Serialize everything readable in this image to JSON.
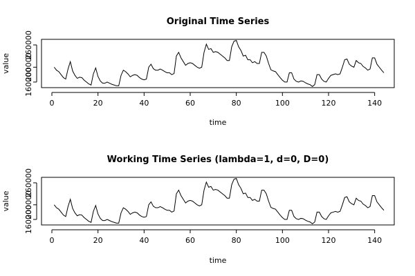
{
  "chart_data": [
    {
      "type": "line",
      "title": "Original Time Series",
      "xlabel": "time",
      "ylabel": "value",
      "color": "#000000",
      "x": [
        1,
        2,
        3,
        4,
        5,
        6,
        7,
        8,
        9,
        10,
        11,
        12,
        13,
        14,
        15,
        16,
        17,
        18,
        19,
        20,
        21,
        22,
        23,
        24,
        25,
        26,
        27,
        28,
        29,
        30,
        31,
        32,
        33,
        34,
        35,
        36,
        37,
        38,
        39,
        40,
        41,
        42,
        43,
        44,
        45,
        46,
        47,
        48,
        49,
        50,
        51,
        52,
        53,
        54,
        55,
        56,
        57,
        58,
        59,
        60,
        61,
        62,
        63,
        64,
        65,
        66,
        67,
        68,
        69,
        70,
        71,
        72,
        73,
        74,
        75,
        76,
        77,
        78,
        79,
        80,
        81,
        82,
        83,
        84,
        85,
        86,
        87,
        88,
        89,
        90,
        91,
        92,
        93,
        94,
        95,
        96,
        97,
        98,
        99,
        100,
        101,
        102,
        103,
        104,
        105,
        106,
        107,
        108,
        109,
        110,
        111,
        112,
        113,
        114,
        115,
        116,
        117,
        118,
        119,
        120,
        121,
        122,
        123,
        124,
        125,
        126,
        127,
        128,
        129,
        130,
        131,
        132,
        133,
        134,
        135,
        136,
        137,
        138,
        139,
        140,
        141,
        142,
        143,
        144
      ],
      "values": [
        200000,
        192000,
        188000,
        180000,
        172000,
        168000,
        195000,
        215000,
        190000,
        178000,
        170000,
        173000,
        172000,
        165000,
        160000,
        155000,
        152000,
        182000,
        198000,
        175000,
        163000,
        157000,
        157000,
        160000,
        157000,
        154000,
        152000,
        150000,
        150000,
        178000,
        192000,
        188000,
        182000,
        174000,
        178000,
        180000,
        178000,
        172000,
        168000,
        166000,
        168000,
        200000,
        208000,
        196000,
        192000,
        192000,
        195000,
        192000,
        188000,
        185000,
        185000,
        180000,
        183000,
        230000,
        240000,
        225000,
        215000,
        205000,
        210000,
        212000,
        210000,
        205000,
        200000,
        197000,
        200000,
        240000,
        262000,
        248000,
        250000,
        240000,
        242000,
        240000,
        235000,
        230000,
        225000,
        218000,
        218000,
        255000,
        270000,
        272000,
        255000,
        245000,
        230000,
        232000,
        220000,
        220000,
        212000,
        215000,
        210000,
        210000,
        240000,
        240000,
        230000,
        210000,
        193000,
        190000,
        188000,
        180000,
        172000,
        165000,
        160000,
        160000,
        185000,
        185000,
        168000,
        162000,
        160000,
        163000,
        162000,
        158000,
        155000,
        153000,
        148000,
        153000,
        180000,
        180000,
        168000,
        162000,
        160000,
        170000,
        178000,
        180000,
        182000,
        180000,
        182000,
        200000,
        220000,
        222000,
        208000,
        203000,
        200000,
        218000,
        212000,
        210000,
        202000,
        198000,
        192000,
        195000,
        225000,
        225000,
        208000,
        200000,
        192000,
        185000
      ],
      "xlim": [
        -4.5,
        148.5
      ],
      "xticks": [
        0,
        20,
        40,
        60,
        80,
        100,
        120,
        140
      ],
      "ylim": [
        145000,
        275000
      ],
      "yticks": [
        160000,
        200000,
        260000
      ]
    },
    {
      "type": "line",
      "title": "Working Time Series (lambda=1, d=0, D=0)",
      "xlabel": "time",
      "ylabel": "value",
      "color": "#000000",
      "x": [
        1,
        2,
        3,
        4,
        5,
        6,
        7,
        8,
        9,
        10,
        11,
        12,
        13,
        14,
        15,
        16,
        17,
        18,
        19,
        20,
        21,
        22,
        23,
        24,
        25,
        26,
        27,
        28,
        29,
        30,
        31,
        32,
        33,
        34,
        35,
        36,
        37,
        38,
        39,
        40,
        41,
        42,
        43,
        44,
        45,
        46,
        47,
        48,
        49,
        50,
        51,
        52,
        53,
        54,
        55,
        56,
        57,
        58,
        59,
        60,
        61,
        62,
        63,
        64,
        65,
        66,
        67,
        68,
        69,
        70,
        71,
        72,
        73,
        74,
        75,
        76,
        77,
        78,
        79,
        80,
        81,
        82,
        83,
        84,
        85,
        86,
        87,
        88,
        89,
        90,
        91,
        92,
        93,
        94,
        95,
        96,
        97,
        98,
        99,
        100,
        101,
        102,
        103,
        104,
        105,
        106,
        107,
        108,
        109,
        110,
        111,
        112,
        113,
        114,
        115,
        116,
        117,
        118,
        119,
        120,
        121,
        122,
        123,
        124,
        125,
        126,
        127,
        128,
        129,
        130,
        131,
        132,
        133,
        134,
        135,
        136,
        137,
        138,
        139,
        140,
        141,
        142,
        143,
        144
      ],
      "values": [
        200000,
        192000,
        188000,
        180000,
        172000,
        168000,
        195000,
        215000,
        190000,
        178000,
        170000,
        173000,
        172000,
        165000,
        160000,
        155000,
        152000,
        182000,
        198000,
        175000,
        163000,
        157000,
        157000,
        160000,
        157000,
        154000,
        152000,
        150000,
        150000,
        178000,
        192000,
        188000,
        182000,
        174000,
        178000,
        180000,
        178000,
        172000,
        168000,
        166000,
        168000,
        200000,
        208000,
        196000,
        192000,
        192000,
        195000,
        192000,
        188000,
        185000,
        185000,
        180000,
        183000,
        230000,
        240000,
        225000,
        215000,
        205000,
        210000,
        212000,
        210000,
        205000,
        200000,
        197000,
        200000,
        240000,
        262000,
        248000,
        250000,
        240000,
        242000,
        240000,
        235000,
        230000,
        225000,
        218000,
        218000,
        255000,
        270000,
        272000,
        255000,
        245000,
        230000,
        232000,
        220000,
        220000,
        212000,
        215000,
        210000,
        210000,
        240000,
        240000,
        230000,
        210000,
        193000,
        190000,
        188000,
        180000,
        172000,
        165000,
        160000,
        160000,
        185000,
        185000,
        168000,
        162000,
        160000,
        163000,
        162000,
        158000,
        155000,
        153000,
        148000,
        153000,
        180000,
        180000,
        168000,
        162000,
        160000,
        170000,
        178000,
        180000,
        182000,
        180000,
        182000,
        200000,
        220000,
        222000,
        208000,
        203000,
        200000,
        218000,
        212000,
        210000,
        202000,
        198000,
        192000,
        195000,
        225000,
        225000,
        208000,
        200000,
        192000,
        185000
      ],
      "xlim": [
        -4.5,
        148.5
      ],
      "xticks": [
        0,
        20,
        40,
        60,
        80,
        100,
        120,
        140
      ],
      "ylim": [
        145000,
        275000
      ],
      "yticks": [
        160000,
        200000,
        260000
      ]
    }
  ]
}
